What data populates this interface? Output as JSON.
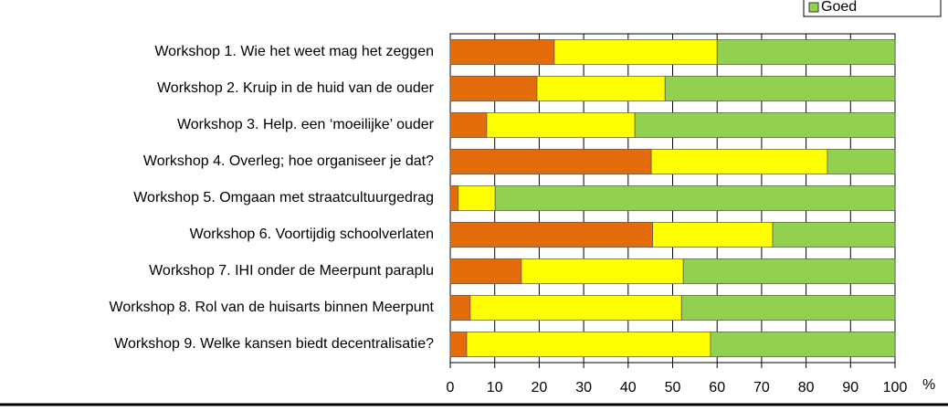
{
  "chart_data": {
    "type": "stacked-bar",
    "orientation": "horizontal",
    "categories": [
      "Workshop 1.  Wie het weet mag het zeggen",
      "Workshop 2.  Kruip in de huid van de ouder",
      "Workshop 3.  Help. een ‘moeilijke’ ouder",
      "Workshop 4.  Overleg; hoe organiseer je dat?",
      "Workshop 5.  Omgaan met straatcultuurgedrag",
      "Workshop 6.  Voortijdig schoolverlaten",
      "Workshop 7.  IHI onder de Meerpunt paraplu",
      "Workshop 8.  Rol van de huisarts binnen Meerpunt",
      "Workshop 9.  Welke kansen biedt decentralisatie?"
    ],
    "series": [
      {
        "color": "#e46c0a",
        "values": [
          23.4,
          19.5,
          8.2,
          45.2,
          1.8,
          45.5,
          16,
          4.5,
          3.7
        ]
      },
      {
        "color": "#ffff00",
        "values": [
          36.6,
          28.8,
          33.3,
          39.6,
          8.3,
          27,
          36.4,
          47.5,
          54.8
        ]
      },
      {
        "name": "Goed",
        "color": "#92d050",
        "values": [
          40,
          51.7,
          58.5,
          15.2,
          89.9,
          27.5,
          47.6,
          48,
          41.5
        ]
      }
    ],
    "x_label": "%",
    "xlim": [
      0,
      100
    ],
    "xticks": [
      0,
      10,
      20,
      30,
      40,
      50,
      60,
      70,
      80,
      90,
      100
    ],
    "grid": true,
    "legend": "top-right"
  }
}
